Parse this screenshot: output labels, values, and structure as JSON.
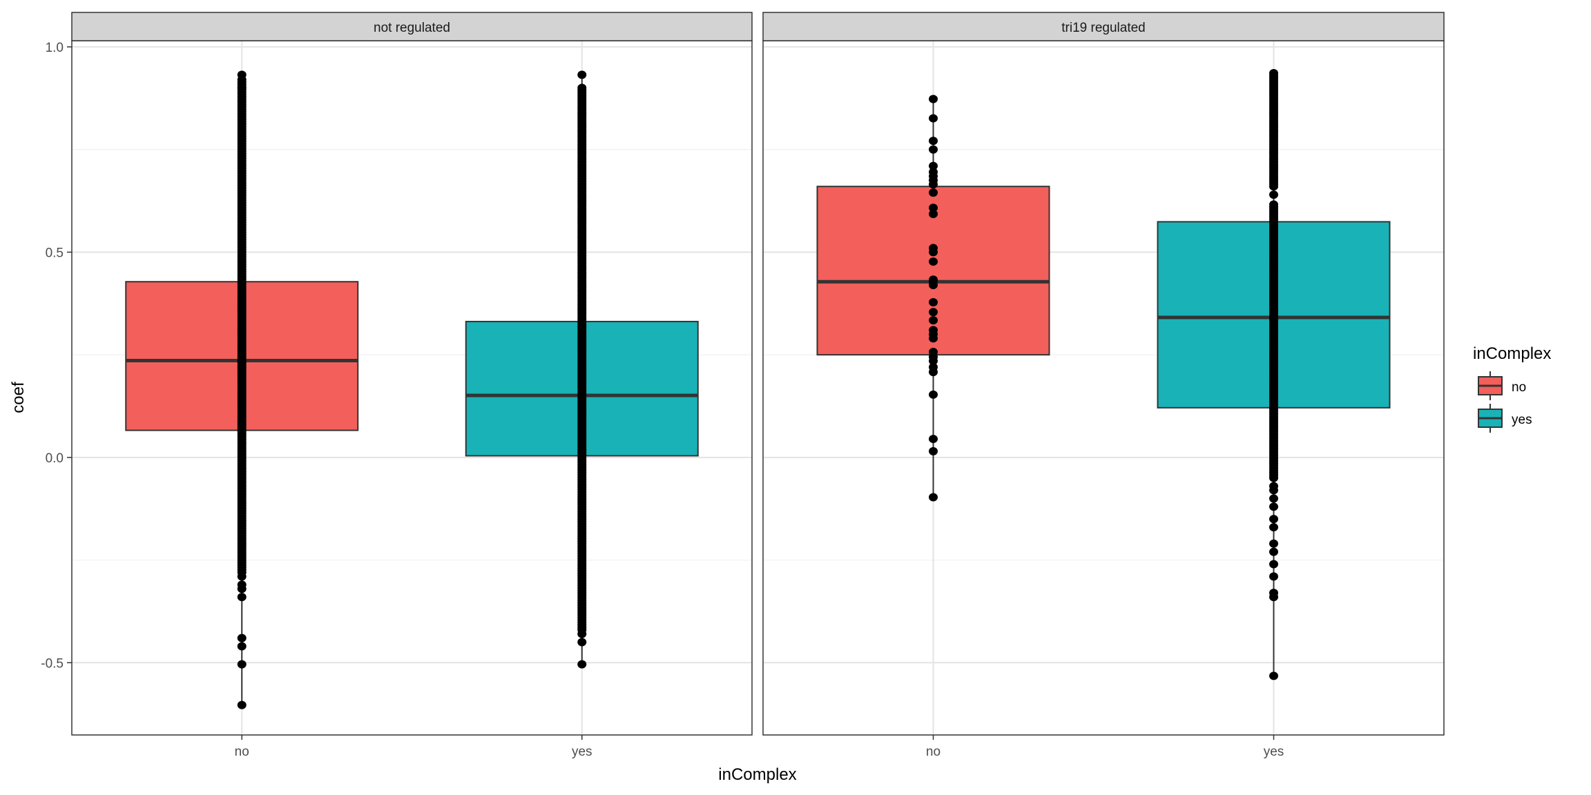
{
  "chart_data": {
    "type": "boxplot",
    "xlabel": "inComplex",
    "ylabel": "coef",
    "ylim": [
      -0.676,
      1.015
    ],
    "y_ticks": [
      -0.5,
      0.0,
      0.5,
      1.0
    ],
    "y_tick_labels": [
      "-0.5",
      "0.0",
      "0.5",
      "1.0"
    ],
    "y_minor_grid": [
      -0.25,
      0.25,
      0.75
    ],
    "grid": true,
    "categories": [
      "no",
      "yes"
    ],
    "legend": {
      "title": "inComplex",
      "position": "right",
      "entries": [
        {
          "label": "no",
          "color": "#F35F5B"
        },
        {
          "label": "yes",
          "color": "#19B2B7"
        }
      ]
    },
    "panels": [
      {
        "title": "not regulated",
        "boxes": [
          {
            "category": "no",
            "min": -0.6,
            "q1": 0.066,
            "median": 0.236,
            "q3": 0.428,
            "max": 0.932,
            "dense_ranges": [
              [
                -0.28,
                0.92
              ]
            ],
            "points": [
              0.932,
              0.9,
              -0.29,
              -0.31,
              -0.32,
              -0.34,
              -0.44,
              -0.46,
              -0.504,
              -0.603
            ]
          },
          {
            "category": "yes",
            "min": -0.504,
            "q1": 0.004,
            "median": 0.151,
            "q3": 0.331,
            "max": 0.932,
            "dense_ranges": [
              [
                -0.42,
                0.9
              ]
            ],
            "points": [
              0.932,
              -0.43,
              -0.45,
              -0.504
            ]
          }
        ]
      },
      {
        "title": "tri19 regulated",
        "boxes": [
          {
            "category": "no",
            "min": -0.097,
            "q1": 0.25,
            "median": 0.428,
            "q3": 0.66,
            "max": 0.873,
            "dense_ranges": [],
            "points": [
              0.873,
              0.826,
              0.771,
              0.75,
              0.71,
              0.695,
              0.685,
              0.675,
              0.665,
              0.645,
              0.608,
              0.593,
              0.51,
              0.5,
              0.477,
              0.433,
              0.428,
              0.42,
              0.378,
              0.354,
              0.334,
              0.31,
              0.3,
              0.29,
              0.257,
              0.245,
              0.235,
              0.22,
              0.208,
              0.153,
              0.045,
              0.015,
              -0.097
            ]
          },
          {
            "category": "yes",
            "min": -0.532,
            "q1": 0.121,
            "median": 0.341,
            "q3": 0.574,
            "max": 0.94,
            "dense_ranges": [
              [
                -0.05,
                0.62
              ],
              [
                0.66,
                0.94
              ]
            ],
            "points": [
              0.64,
              -0.07,
              -0.08,
              -0.1,
              -0.12,
              -0.15,
              -0.17,
              -0.21,
              -0.23,
              -0.26,
              -0.29,
              -0.33,
              -0.34,
              -0.532
            ]
          }
        ]
      }
    ]
  }
}
